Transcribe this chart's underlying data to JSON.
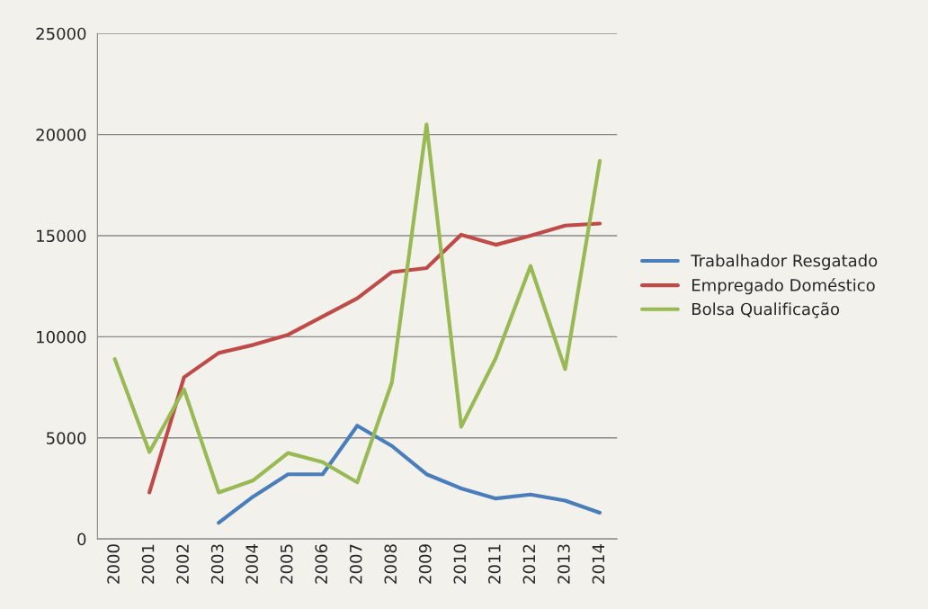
{
  "chart_data": {
    "type": "line",
    "categories": [
      "2000",
      "2001",
      "2002",
      "2003",
      "2004",
      "2005",
      "2006",
      "2007",
      "2008",
      "2009",
      "2010",
      "2011",
      "2012",
      "2013",
      "2014"
    ],
    "series": [
      {
        "name": "Trabalhador Resgatado",
        "color": "#4a7ebb",
        "values": [
          null,
          null,
          null,
          800,
          2100,
          3200,
          3200,
          5600,
          4600,
          3200,
          2500,
          2000,
          2200,
          1900,
          1300
        ]
      },
      {
        "name": "Empregado Doméstico",
        "color": "#be4b48",
        "values": [
          null,
          2300,
          8000,
          9200,
          9600,
          10100,
          11000,
          11900,
          13200,
          13400,
          15050,
          14550,
          15000,
          15500,
          15600
        ]
      },
      {
        "name": "Bolsa Qualificação",
        "color": "#98b954",
        "values": [
          8900,
          4300,
          7400,
          2300,
          2900,
          4250,
          3800,
          2800,
          7750,
          20500,
          5550,
          8950,
          13500,
          8400,
          18700
        ]
      }
    ],
    "ylim": [
      0,
      25000
    ],
    "yticks": [
      0,
      5000,
      10000,
      15000,
      20000,
      25000
    ],
    "grid": "y",
    "legend": "right",
    "marker": "none",
    "line_style": "solid"
  }
}
